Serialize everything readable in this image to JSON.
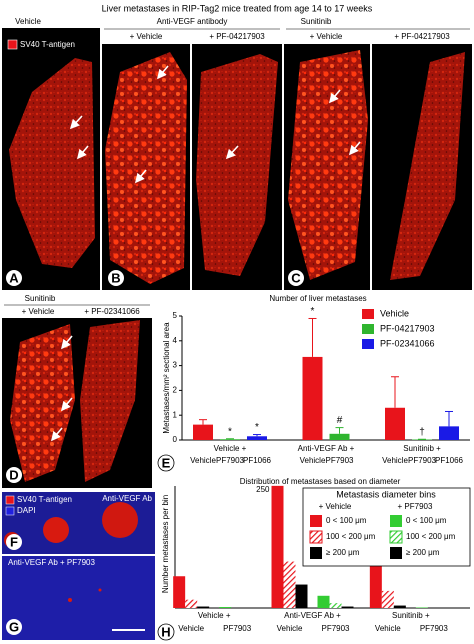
{
  "figure": {
    "title": "Liver metastases in RIP-Tag2 mice treated from age 14 to 17 weeks",
    "panel_a": {
      "letter": "A",
      "header": "Vehicle",
      "legend": "SV40 T-antigen"
    },
    "panel_b": {
      "letter": "B",
      "header": "Anti-VEGF antibody",
      "left": "+ Vehicle",
      "right": "+ PF-04217903"
    },
    "panel_c": {
      "letter": "C",
      "header": "Sunitinib",
      "left": "+ Vehicle",
      "right": "+ PF-04217903"
    },
    "panel_d": {
      "letter": "D",
      "header": "Sunitinib",
      "left": "+ Vehicle",
      "right": "+ PF-02341066"
    },
    "panel_e": {
      "letter": "E"
    },
    "panel_f": {
      "letter": "F",
      "legend": [
        "SV40 T-antigen",
        "DAPI"
      ],
      "label": "Anti-VEGF Ab"
    },
    "panel_g": {
      "letter": "G",
      "label": "Anti-VEGF Ab + PF7903"
    },
    "panel_h": {
      "letter": "H"
    }
  },
  "chart_data": [
    {
      "type": "bar",
      "title": "Number of liver metastases",
      "y_label": "Metastases/mm² sectional area",
      "categories": [
        "Vehicle +",
        "Anti-VEGF Ab +",
        "Sunitinib +"
      ],
      "bar_labels": [
        [
          "Vehicle",
          "PF7903",
          "PF1066"
        ],
        [
          "Vehicle",
          "PF7903"
        ],
        [
          "Vehicle",
          "PF7903",
          "PF1066"
        ]
      ],
      "series": [
        {
          "name": "Vehicle",
          "color": "#e8141b",
          "values": [
            0.62,
            3.35,
            1.3
          ],
          "errors": [
            0.2,
            1.55,
            1.25
          ],
          "annotations": [
            null,
            "*",
            null
          ]
        },
        {
          "name": "PF-04217903",
          "color": "#2fb52f",
          "values": [
            0.03,
            0.25,
            0.02
          ],
          "errors": [
            0.02,
            0.25,
            0.01
          ],
          "annotations": [
            "*",
            "#",
            "†"
          ]
        },
        {
          "name": "PF-02341066",
          "color": "#1a1ae6",
          "values": [
            0.15,
            null,
            0.55
          ],
          "errors": [
            0.07,
            null,
            0.6
          ],
          "annotations": [
            "*",
            null,
            null
          ]
        }
      ],
      "ylim": [
        0,
        5
      ],
      "yticks": [
        0,
        1,
        2,
        3,
        4,
        5
      ],
      "legend": "upper right"
    },
    {
      "type": "grouped-bar",
      "title": "Distribution of metastases based on diameter",
      "y_label": "Number metastases per bin",
      "categories": [
        "Vehicle +",
        "Anti-VEGF Ab +",
        "Sunitinib +"
      ],
      "cluster_labels": [
        "Vehicle",
        "PF7903"
      ],
      "legend_title": "Metastasis diameter bins",
      "series_groups": [
        {
          "name": "+ Vehicle",
          "series": [
            {
              "name": "0 < 100 μm",
              "color": "#e8141b",
              "pattern": "solid",
              "values": [
                65,
                250,
                103
              ],
              "value_labels": [
                null,
                "250",
                null
              ]
            },
            {
              "name": "100 < 200 μm",
              "color": "#e8141b",
              "pattern": "hatched",
              "values": [
                17,
                95,
                35
              ]
            },
            {
              "name": "≥ 200 μm",
              "color": "#000000",
              "pattern": "solid",
              "values": [
                3,
                48,
                5
              ]
            }
          ]
        },
        {
          "name": "+ PF7903",
          "series": [
            {
              "name": "0 < 100 μm",
              "color": "#33cc33",
              "pattern": "solid",
              "values": [
                2,
                25,
                1
              ]
            },
            {
              "name": "100 < 200 μm",
              "color": "#33cc33",
              "pattern": "hatched",
              "values": [
                0,
                10,
                0
              ]
            },
            {
              "name": "≥ 200 μm",
              "color": "#000000",
              "pattern": "solid",
              "values": [
                0,
                3,
                0
              ]
            }
          ]
        }
      ],
      "ylim": [
        0,
        262
      ],
      "legend": "upper right"
    }
  ]
}
